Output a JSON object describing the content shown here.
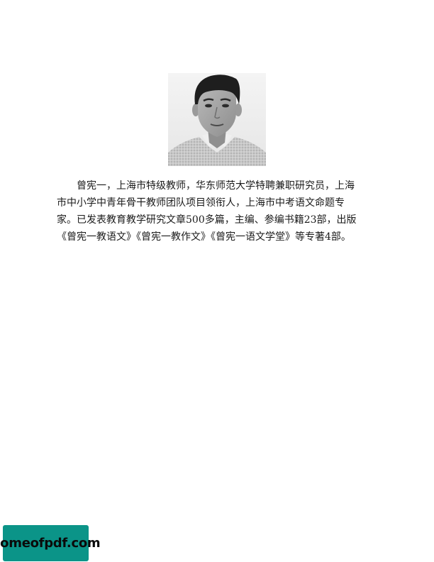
{
  "author": {
    "bio_lines": [
      "曾宪一，上海市特级教师，华东师范大学特聘兼职研究员，上海",
      "市中小学中青年骨干教师团队项目领衔人，上海市中考语文命题专",
      "家。已发表教育教学研究文章500多篇，主编、参编书籍23部，出版",
      "《曾宪一教语文》《曾宪一教作文》《曾宪一语文学堂》等专著4部。"
    ]
  },
  "watermark": {
    "text": "homeofpdf.com",
    "color": "#0b9488"
  }
}
